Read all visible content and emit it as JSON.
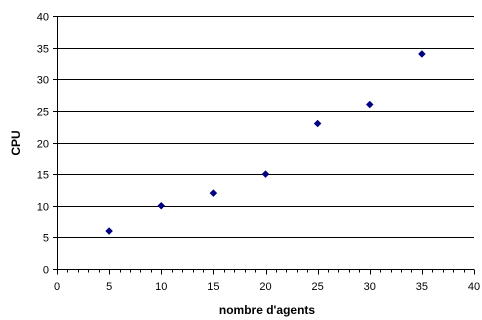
{
  "chart_data": {
    "type": "scatter",
    "title": "",
    "xlabel": "nombre d'agents",
    "ylabel": "CPU",
    "xlim": [
      0,
      40
    ],
    "ylim": [
      0,
      40
    ],
    "x_ticks": [
      0,
      5,
      10,
      15,
      20,
      25,
      30,
      35,
      40
    ],
    "y_ticks": [
      0,
      5,
      10,
      15,
      20,
      25,
      30,
      35,
      40
    ],
    "x_minor_step": 1,
    "grid": {
      "horizontal": true,
      "vertical": false
    },
    "legend": "none",
    "series": [
      {
        "color": "#000080",
        "marker": "diamond",
        "x": [
          5,
          10,
          15,
          20,
          25,
          30,
          35
        ],
        "y": [
          6,
          10,
          12,
          15,
          23,
          26,
          34
        ]
      }
    ]
  }
}
